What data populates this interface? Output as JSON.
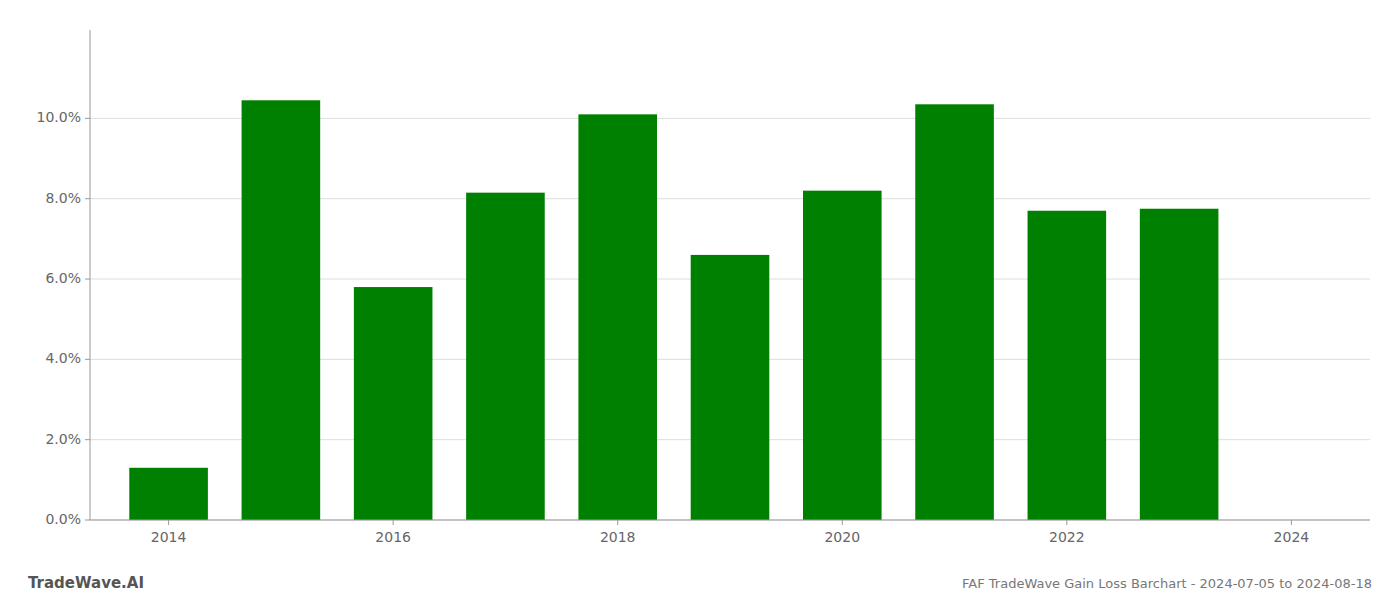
{
  "chart_data": {
    "type": "bar",
    "title": "FAF TradeWave Gain Loss Barchart - 2024-07-05 to 2024-08-18",
    "annotations": [
      "TradeWave.AI"
    ],
    "x": [
      2014,
      2015,
      2016,
      2017,
      2018,
      2019,
      2020,
      2021,
      2022,
      2023
    ],
    "values": [
      0.013,
      0.1045,
      0.058,
      0.0815,
      0.101,
      0.066,
      0.082,
      0.1035,
      0.077,
      0.0775
    ],
    "color": "#008000",
    "xlim": [
      2013.3,
      2024.7
    ],
    "xticks": [
      2014,
      2016,
      2018,
      2020,
      2022,
      2024
    ],
    "ylim": [
      0,
      0.122
    ],
    "yticks": [
      {
        "value": 0.0,
        "label": "0.0%"
      },
      {
        "value": 0.02,
        "label": "2.0%"
      },
      {
        "value": 0.04,
        "label": "4.0%"
      },
      {
        "value": 0.06,
        "label": "6.0%"
      },
      {
        "value": 0.08,
        "label": "8.0%"
      },
      {
        "value": 0.1,
        "label": "10.0%"
      }
    ],
    "grid": true
  }
}
